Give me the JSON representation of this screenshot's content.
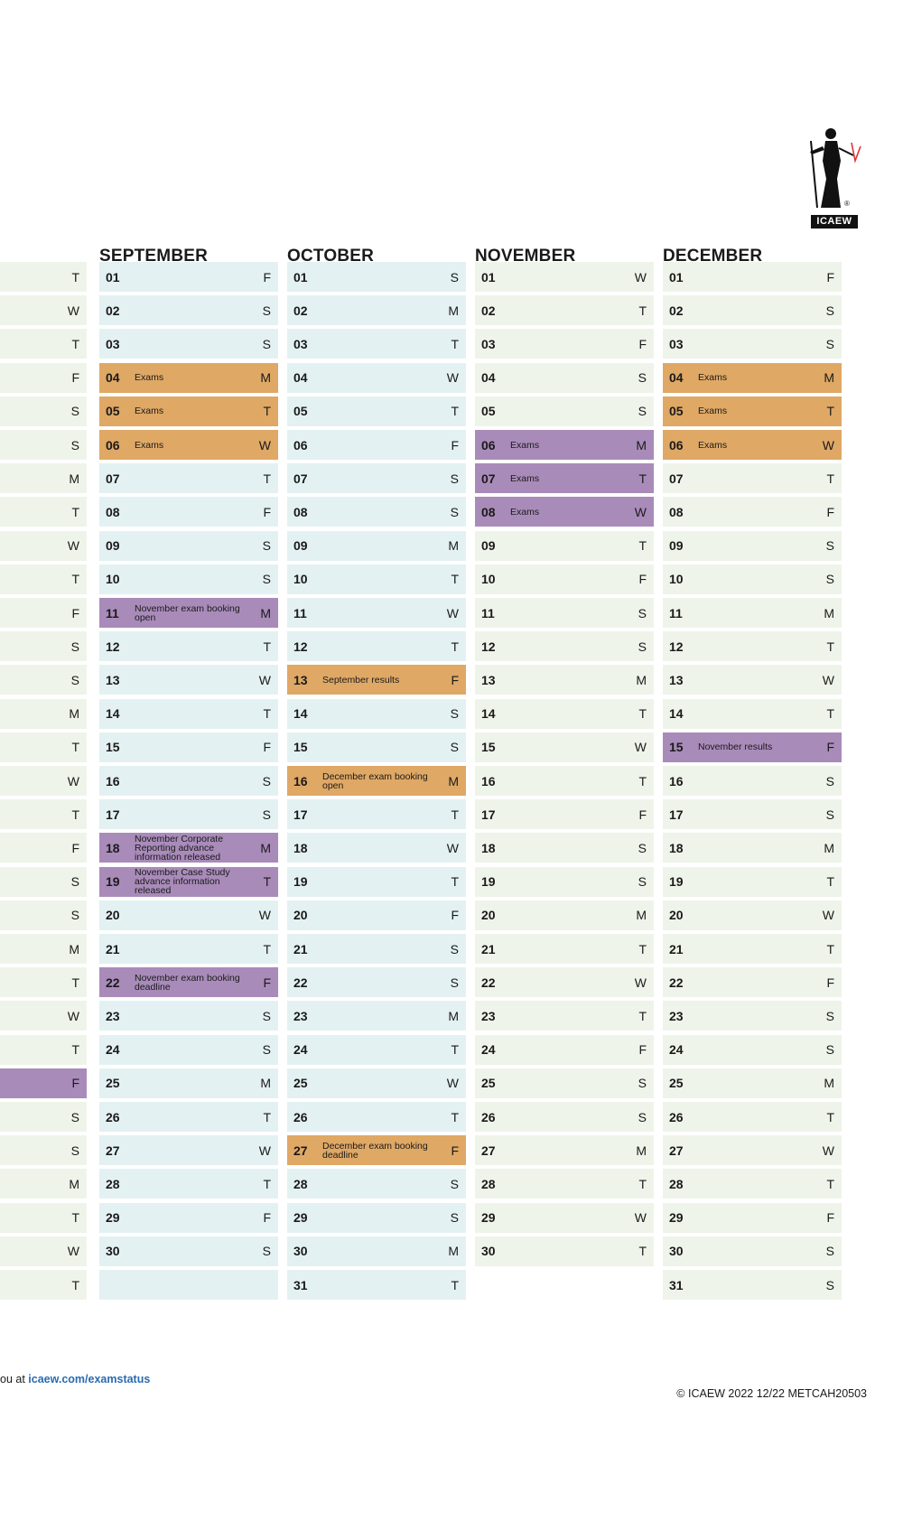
{
  "logo_text": "ICAEW",
  "footer_left_prefix": "ou at ",
  "footer_left_link": "icaew.com/examstatus",
  "footer_right": "© ICAEW 2022 12/22 METCAH20503",
  "left_partial": [
    {
      "wd": "T",
      "c": "green"
    },
    {
      "wd": "W",
      "c": "green"
    },
    {
      "wd": "T",
      "c": "green"
    },
    {
      "wd": "F",
      "c": "green"
    },
    {
      "wd": "S",
      "c": "green"
    },
    {
      "wd": "S",
      "c": "green"
    },
    {
      "wd": "M",
      "c": "green"
    },
    {
      "wd": "T",
      "c": "green"
    },
    {
      "wd": "W",
      "c": "green"
    },
    {
      "wd": "T",
      "c": "green"
    },
    {
      "wd": "F",
      "c": "green"
    },
    {
      "wd": "S",
      "c": "green"
    },
    {
      "wd": "S",
      "c": "green"
    },
    {
      "wd": "M",
      "c": "green"
    },
    {
      "wd": "T",
      "c": "green"
    },
    {
      "wd": "W",
      "c": "green"
    },
    {
      "wd": "T",
      "c": "green"
    },
    {
      "wd": "F",
      "c": "green"
    },
    {
      "wd": "S",
      "c": "green"
    },
    {
      "wd": "S",
      "c": "green"
    },
    {
      "wd": "M",
      "c": "green"
    },
    {
      "wd": "T",
      "c": "green"
    },
    {
      "wd": "W",
      "c": "green"
    },
    {
      "wd": "T",
      "c": "green"
    },
    {
      "wd": "F",
      "c": "purple"
    },
    {
      "wd": "S",
      "c": "green"
    },
    {
      "wd": "S",
      "c": "green"
    },
    {
      "wd": "M",
      "c": "green"
    },
    {
      "wd": "T",
      "c": "green"
    },
    {
      "wd": "W",
      "c": "green"
    },
    {
      "wd": "T",
      "c": "green"
    }
  ],
  "months": [
    {
      "name": "SEPTEMBER",
      "days": [
        {
          "d": "01",
          "wd": "F",
          "c": "blue"
        },
        {
          "d": "02",
          "wd": "S",
          "c": "blue"
        },
        {
          "d": "03",
          "wd": "S",
          "c": "blue"
        },
        {
          "d": "04",
          "wd": "M",
          "c": "orange",
          "note": "Exams"
        },
        {
          "d": "05",
          "wd": "T",
          "c": "orange",
          "note": "Exams"
        },
        {
          "d": "06",
          "wd": "W",
          "c": "orange",
          "note": "Exams"
        },
        {
          "d": "07",
          "wd": "T",
          "c": "blue"
        },
        {
          "d": "08",
          "wd": "F",
          "c": "blue"
        },
        {
          "d": "09",
          "wd": "S",
          "c": "blue"
        },
        {
          "d": "10",
          "wd": "S",
          "c": "blue"
        },
        {
          "d": "11",
          "wd": "M",
          "c": "purple",
          "note": "November exam booking open"
        },
        {
          "d": "12",
          "wd": "T",
          "c": "blue"
        },
        {
          "d": "13",
          "wd": "W",
          "c": "blue"
        },
        {
          "d": "14",
          "wd": "T",
          "c": "blue"
        },
        {
          "d": "15",
          "wd": "F",
          "c": "blue"
        },
        {
          "d": "16",
          "wd": "S",
          "c": "blue"
        },
        {
          "d": "17",
          "wd": "S",
          "c": "blue"
        },
        {
          "d": "18",
          "wd": "M",
          "c": "purple",
          "note": "November Corporate Reporting advance information released"
        },
        {
          "d": "19",
          "wd": "T",
          "c": "purple",
          "note": "November Case Study advance information released"
        },
        {
          "d": "20",
          "wd": "W",
          "c": "blue"
        },
        {
          "d": "21",
          "wd": "T",
          "c": "blue"
        },
        {
          "d": "22",
          "wd": "F",
          "c": "purple",
          "note": "November exam booking deadline"
        },
        {
          "d": "23",
          "wd": "S",
          "c": "blue"
        },
        {
          "d": "24",
          "wd": "S",
          "c": "blue"
        },
        {
          "d": "25",
          "wd": "M",
          "c": "blue"
        },
        {
          "d": "26",
          "wd": "T",
          "c": "blue"
        },
        {
          "d": "27",
          "wd": "W",
          "c": "blue"
        },
        {
          "d": "28",
          "wd": "T",
          "c": "blue"
        },
        {
          "d": "29",
          "wd": "F",
          "c": "blue"
        },
        {
          "d": "30",
          "wd": "S",
          "c": "blue"
        },
        {
          "d": "",
          "wd": "",
          "c": "empty"
        }
      ]
    },
    {
      "name": "OCTOBER",
      "days": [
        {
          "d": "01",
          "wd": "S",
          "c": "blue"
        },
        {
          "d": "02",
          "wd": "M",
          "c": "blue"
        },
        {
          "d": "03",
          "wd": "T",
          "c": "blue"
        },
        {
          "d": "04",
          "wd": "W",
          "c": "blue"
        },
        {
          "d": "05",
          "wd": "T",
          "c": "blue"
        },
        {
          "d": "06",
          "wd": "F",
          "c": "blue"
        },
        {
          "d": "07",
          "wd": "S",
          "c": "blue"
        },
        {
          "d": "08",
          "wd": "S",
          "c": "blue"
        },
        {
          "d": "09",
          "wd": "M",
          "c": "blue"
        },
        {
          "d": "10",
          "wd": "T",
          "c": "blue"
        },
        {
          "d": "11",
          "wd": "W",
          "c": "blue"
        },
        {
          "d": "12",
          "wd": "T",
          "c": "blue"
        },
        {
          "d": "13",
          "wd": "F",
          "c": "orange",
          "note": "September results"
        },
        {
          "d": "14",
          "wd": "S",
          "c": "blue"
        },
        {
          "d": "15",
          "wd": "S",
          "c": "blue"
        },
        {
          "d": "16",
          "wd": "M",
          "c": "orange",
          "note": "December exam booking open"
        },
        {
          "d": "17",
          "wd": "T",
          "c": "blue"
        },
        {
          "d": "18",
          "wd": "W",
          "c": "blue"
        },
        {
          "d": "19",
          "wd": "T",
          "c": "blue"
        },
        {
          "d": "20",
          "wd": "F",
          "c": "blue"
        },
        {
          "d": "21",
          "wd": "S",
          "c": "blue"
        },
        {
          "d": "22",
          "wd": "S",
          "c": "blue"
        },
        {
          "d": "23",
          "wd": "M",
          "c": "blue"
        },
        {
          "d": "24",
          "wd": "T",
          "c": "blue"
        },
        {
          "d": "25",
          "wd": "W",
          "c": "blue"
        },
        {
          "d": "26",
          "wd": "T",
          "c": "blue"
        },
        {
          "d": "27",
          "wd": "F",
          "c": "orange",
          "note": "December exam booking deadline"
        },
        {
          "d": "28",
          "wd": "S",
          "c": "blue"
        },
        {
          "d": "29",
          "wd": "S",
          "c": "blue"
        },
        {
          "d": "30",
          "wd": "M",
          "c": "blue"
        },
        {
          "d": "31",
          "wd": "T",
          "c": "blue"
        }
      ]
    },
    {
      "name": "NOVEMBER",
      "days": [
        {
          "d": "01",
          "wd": "W",
          "c": "green"
        },
        {
          "d": "02",
          "wd": "T",
          "c": "green"
        },
        {
          "d": "03",
          "wd": "F",
          "c": "green"
        },
        {
          "d": "04",
          "wd": "S",
          "c": "green"
        },
        {
          "d": "05",
          "wd": "S",
          "c": "green"
        },
        {
          "d": "06",
          "wd": "M",
          "c": "purple",
          "note": "Exams"
        },
        {
          "d": "07",
          "wd": "T",
          "c": "purple",
          "note": "Exams"
        },
        {
          "d": "08",
          "wd": "W",
          "c": "purple",
          "note": "Exams"
        },
        {
          "d": "09",
          "wd": "T",
          "c": "green"
        },
        {
          "d": "10",
          "wd": "F",
          "c": "green"
        },
        {
          "d": "11",
          "wd": "S",
          "c": "green"
        },
        {
          "d": "12",
          "wd": "S",
          "c": "green"
        },
        {
          "d": "13",
          "wd": "M",
          "c": "green"
        },
        {
          "d": "14",
          "wd": "T",
          "c": "green"
        },
        {
          "d": "15",
          "wd": "W",
          "c": "green"
        },
        {
          "d": "16",
          "wd": "T",
          "c": "green"
        },
        {
          "d": "17",
          "wd": "F",
          "c": "green"
        },
        {
          "d": "18",
          "wd": "S",
          "c": "green"
        },
        {
          "d": "19",
          "wd": "S",
          "c": "green"
        },
        {
          "d": "20",
          "wd": "M",
          "c": "green"
        },
        {
          "d": "21",
          "wd": "T",
          "c": "green"
        },
        {
          "d": "22",
          "wd": "W",
          "c": "green"
        },
        {
          "d": "23",
          "wd": "T",
          "c": "green"
        },
        {
          "d": "24",
          "wd": "F",
          "c": "green"
        },
        {
          "d": "25",
          "wd": "S",
          "c": "green"
        },
        {
          "d": "26",
          "wd": "S",
          "c": "green"
        },
        {
          "d": "27",
          "wd": "M",
          "c": "green"
        },
        {
          "d": "28",
          "wd": "T",
          "c": "green"
        },
        {
          "d": "29",
          "wd": "W",
          "c": "green"
        },
        {
          "d": "30",
          "wd": "T",
          "c": "green"
        }
      ]
    },
    {
      "name": "DECEMBER",
      "days": [
        {
          "d": "01",
          "wd": "F",
          "c": "green"
        },
        {
          "d": "02",
          "wd": "S",
          "c": "green"
        },
        {
          "d": "03",
          "wd": "S",
          "c": "green"
        },
        {
          "d": "04",
          "wd": "M",
          "c": "orange",
          "note": "Exams"
        },
        {
          "d": "05",
          "wd": "T",
          "c": "orange",
          "note": "Exams"
        },
        {
          "d": "06",
          "wd": "W",
          "c": "orange",
          "note": "Exams"
        },
        {
          "d": "07",
          "wd": "T",
          "c": "green"
        },
        {
          "d": "08",
          "wd": "F",
          "c": "green"
        },
        {
          "d": "09",
          "wd": "S",
          "c": "green"
        },
        {
          "d": "10",
          "wd": "S",
          "c": "green"
        },
        {
          "d": "11",
          "wd": "M",
          "c": "green"
        },
        {
          "d": "12",
          "wd": "T",
          "c": "green"
        },
        {
          "d": "13",
          "wd": "W",
          "c": "green"
        },
        {
          "d": "14",
          "wd": "T",
          "c": "green"
        },
        {
          "d": "15",
          "wd": "F",
          "c": "purple",
          "note": "November results"
        },
        {
          "d": "16",
          "wd": "S",
          "c": "green"
        },
        {
          "d": "17",
          "wd": "S",
          "c": "green"
        },
        {
          "d": "18",
          "wd": "M",
          "c": "green"
        },
        {
          "d": "19",
          "wd": "T",
          "c": "green"
        },
        {
          "d": "20",
          "wd": "W",
          "c": "green"
        },
        {
          "d": "21",
          "wd": "T",
          "c": "green"
        },
        {
          "d": "22",
          "wd": "F",
          "c": "green"
        },
        {
          "d": "23",
          "wd": "S",
          "c": "green"
        },
        {
          "d": "24",
          "wd": "S",
          "c": "green"
        },
        {
          "d": "25",
          "wd": "M",
          "c": "green"
        },
        {
          "d": "26",
          "wd": "T",
          "c": "green"
        },
        {
          "d": "27",
          "wd": "W",
          "c": "green"
        },
        {
          "d": "28",
          "wd": "T",
          "c": "green"
        },
        {
          "d": "29",
          "wd": "F",
          "c": "green"
        },
        {
          "d": "30",
          "wd": "S",
          "c": "green"
        },
        {
          "d": "31",
          "wd": "S",
          "c": "green"
        }
      ]
    }
  ],
  "colors": {
    "blue": "#e4f1f2",
    "green": "#eff4ea",
    "orange": "#dfa865",
    "purple": "#a98bba"
  }
}
